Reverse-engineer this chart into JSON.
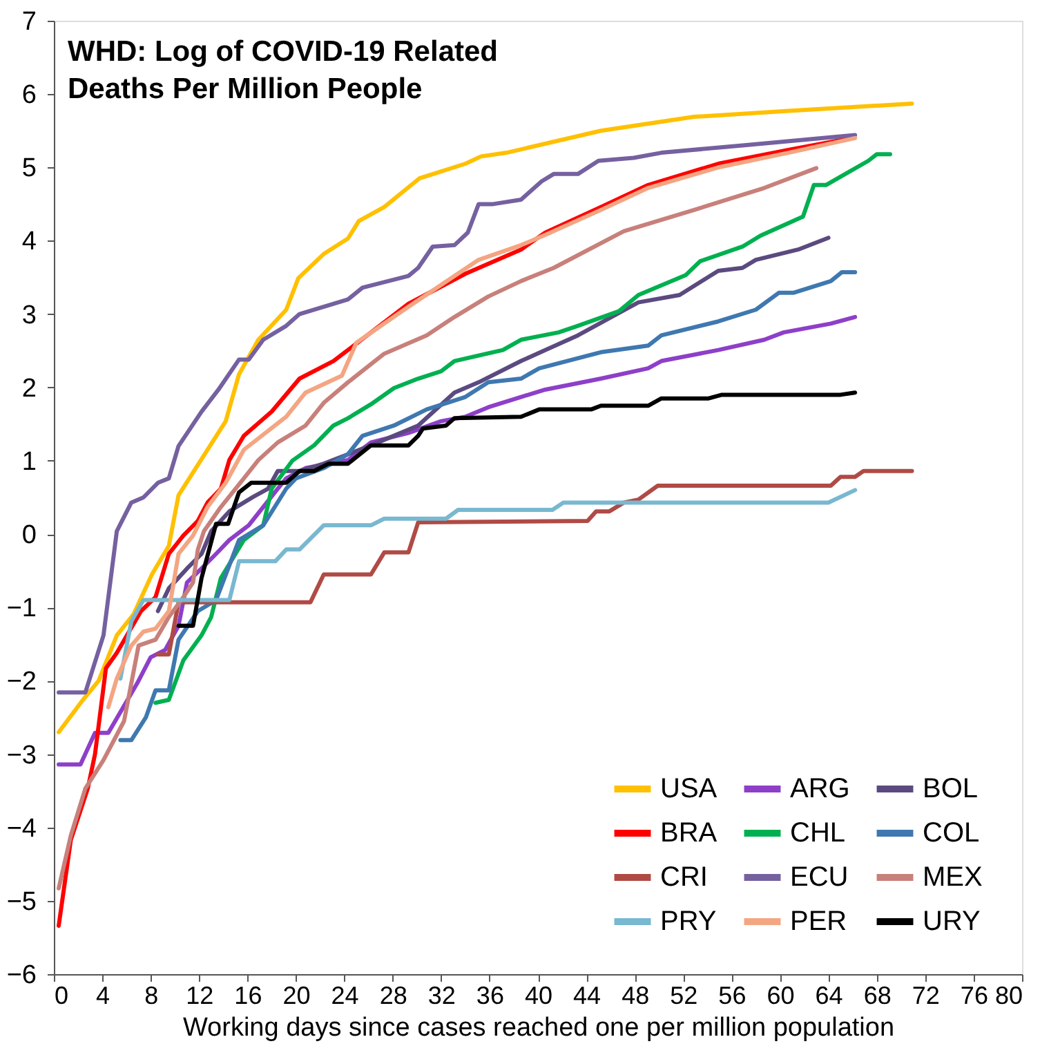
{
  "chart_data": {
    "type": "line",
    "title": "WHD: Log of COVID-19 Related\nDeaths Per Million People",
    "xlabel": "Working days since cases reached one per million population",
    "xlim": [
      0,
      80
    ],
    "xticks": [
      0,
      4,
      8,
      12,
      16,
      20,
      24,
      28,
      32,
      36,
      40,
      44,
      48,
      52,
      56,
      60,
      64,
      68,
      72,
      76,
      80
    ],
    "ylim": [
      -6,
      7
    ],
    "yticks": [
      -6,
      -5,
      -4,
      -3,
      -2,
      -1,
      0,
      1,
      2,
      3,
      4,
      5,
      6,
      7
    ],
    "grid": false,
    "legend": "bottom right",
    "line_style": "solid",
    "series": [
      {
        "name": "USA",
        "color": "#ffc000",
        "x": [
          0.4,
          2.4,
          3.7,
          5.2,
          6.6,
          8.1,
          9.5,
          10.3,
          14.2,
          15.3,
          16.9,
          19.2,
          20.2,
          22.3,
          24.3,
          25.2,
          27.3,
          30.2,
          34,
          35.3,
          37.4,
          45.2,
          52.9,
          60.7,
          70.9
        ],
        "values": [
          -2.7,
          -2.26,
          -2.0,
          -1.38,
          -1.09,
          -0.55,
          -0.16,
          0.53,
          1.54,
          2.18,
          2.65,
          3.06,
          3.49,
          3.82,
          4.03,
          4.27,
          4.46,
          4.85,
          5.05,
          5.15,
          5.2,
          5.5,
          5.69,
          5.77,
          5.87
        ]
      },
      {
        "name": "ARG",
        "color": "#8e3fc8",
        "x": [
          0.4,
          2.2,
          3.4,
          4.5,
          6.9,
          8,
          9.2,
          10.3,
          11,
          12.2,
          13.4,
          14.5,
          16.1,
          17.3,
          18.5,
          19.2,
          20.8,
          24.3,
          26.2,
          29.3,
          32,
          34,
          35.9,
          38.6,
          40.6,
          45.2,
          49.1,
          50.2,
          54.9,
          58.7,
          60.3,
          64.2,
          66.2
        ],
        "values": [
          -3.14,
          -3.14,
          -2.71,
          -2.71,
          -2.03,
          -1.68,
          -1.58,
          -1.25,
          -0.66,
          -0.47,
          -0.27,
          -0.08,
          0.12,
          0.37,
          0.62,
          0.76,
          0.9,
          1.01,
          1.25,
          1.38,
          1.54,
          1.6,
          1.73,
          1.87,
          1.97,
          2.12,
          2.26,
          2.36,
          2.51,
          2.65,
          2.75,
          2.87,
          2.96
        ]
      },
      {
        "name": "BOL",
        "color": "#5b4a80",
        "x": [
          8.6,
          9.5,
          11,
          12.2,
          13,
          14.5,
          16.5,
          17.7,
          18.5,
          20.3,
          22.3,
          26.2,
          30.1,
          33.1,
          35.1,
          38.6,
          39.4,
          43.3,
          48.3,
          51.7,
          54.9,
          56.9,
          58,
          61.5,
          64
        ],
        "values": [
          -1.05,
          -0.74,
          -0.47,
          -0.27,
          0.04,
          0.31,
          0.51,
          0.62,
          0.86,
          0.86,
          0.96,
          1.21,
          1.48,
          1.93,
          2.07,
          2.36,
          2.42,
          2.71,
          3.16,
          3.26,
          3.59,
          3.63,
          3.74,
          3.88,
          4.04
        ]
      },
      {
        "name": "BRA",
        "color": "#ff0000",
        "x": [
          0.4,
          1.4,
          2.8,
          3.4,
          4.3,
          5.2,
          7.2,
          8.4,
          9.5,
          10.7,
          11.9,
          12.7,
          13.8,
          14.5,
          15.7,
          18,
          20.3,
          23.1,
          24.3,
          29.3,
          34,
          38.6,
          40.6,
          45.2,
          49.1,
          54.9,
          60.7,
          65.9
        ],
        "values": [
          -5.34,
          -4.17,
          -3.47,
          -3.0,
          -1.83,
          -1.62,
          -1.05,
          -0.86,
          -0.27,
          -0.02,
          0.18,
          0.43,
          0.62,
          1.01,
          1.34,
          1.67,
          2.12,
          2.36,
          2.51,
          3.14,
          3.55,
          3.88,
          4.11,
          4.46,
          4.76,
          5.05,
          5.24,
          5.4
        ]
      },
      {
        "name": "CHL",
        "color": "#00b050",
        "x": [
          8.4,
          9.5,
          10.7,
          12.2,
          13,
          13.8,
          15.7,
          17.3,
          18,
          19.7,
          21.5,
          23.1,
          24.3,
          26.2,
          28.1,
          30.1,
          32,
          33.1,
          37.1,
          38.6,
          41.7,
          43.3,
          46.7,
          48.3,
          52.2,
          53.4,
          56.9,
          58.4,
          61.9,
          62.8,
          63.8,
          67.3,
          68,
          69.1
        ],
        "values": [
          -2.3,
          -2.26,
          -1.72,
          -1.38,
          -1.13,
          -0.6,
          -0.08,
          0.12,
          0.62,
          1.0,
          1.21,
          1.48,
          1.58,
          1.77,
          1.99,
          2.12,
          2.22,
          2.36,
          2.51,
          2.65,
          2.75,
          2.84,
          3.04,
          3.26,
          3.53,
          3.72,
          3.92,
          4.07,
          4.33,
          4.76,
          4.76,
          5.09,
          5.18,
          5.18
        ]
      },
      {
        "name": "COL",
        "color": "#3f78b0",
        "x": [
          5.5,
          6.4,
          7.6,
          8.4,
          9.5,
          10.3,
          11.9,
          13.4,
          15.3,
          17.3,
          19.2,
          20,
          22.3,
          24.3,
          25.5,
          28.1,
          30.8,
          34,
          35.9,
          38.6,
          40.1,
          45.2,
          49.1,
          50.2,
          54.9,
          58,
          59.9,
          61.1,
          64.2,
          65.1,
          66.2
        ],
        "values": [
          -2.81,
          -2.81,
          -2.5,
          -2.13,
          -2.13,
          -1.44,
          -1.05,
          -0.9,
          -0.08,
          0.12,
          0.62,
          0.76,
          0.9,
          1.09,
          1.34,
          1.48,
          1.7,
          1.87,
          2.07,
          2.12,
          2.26,
          2.48,
          2.57,
          2.71,
          2.9,
          3.06,
          3.29,
          3.29,
          3.45,
          3.57,
          3.57
        ]
      },
      {
        "name": "CRI",
        "color": "#b04a45",
        "x": [
          8.6,
          9.5,
          10.3,
          21.2,
          22.3,
          26.2,
          27.3,
          29.3,
          30.1,
          44.1,
          44.8,
          45.9,
          47.1,
          48.3,
          49.9,
          64.2,
          65,
          66.2,
          66.9,
          70.9
        ],
        "values": [
          -1.64,
          -1.64,
          -0.93,
          -0.93,
          -0.55,
          -0.55,
          -0.25,
          -0.25,
          0.16,
          0.18,
          0.31,
          0.31,
          0.43,
          0.47,
          0.66,
          0.66,
          0.78,
          0.78,
          0.86,
          0.86
        ]
      },
      {
        "name": "ECU",
        "color": "#7560a0",
        "x": [
          0.4,
          2.6,
          4.1,
          5.2,
          6.4,
          7.4,
          8.6,
          9.5,
          10.3,
          12.2,
          13.6,
          15.3,
          16.1,
          17.3,
          19.2,
          20.3,
          24.3,
          25.5,
          29.3,
          30.1,
          31.3,
          33.1,
          34.2,
          35.1,
          36.3,
          38.6,
          40.3,
          41.3,
          43.3,
          45,
          47.9,
          50.2,
          56.9,
          66.2
        ],
        "values": [
          -2.16,
          -2.16,
          -1.38,
          0.04,
          0.43,
          0.5,
          0.7,
          0.76,
          1.2,
          1.67,
          1.97,
          2.38,
          2.38,
          2.65,
          2.84,
          3.0,
          3.2,
          3.36,
          3.52,
          3.63,
          3.92,
          3.94,
          4.11,
          4.5,
          4.5,
          4.56,
          4.81,
          4.91,
          4.91,
          5.09,
          5.13,
          5.2,
          5.3,
          5.44
        ]
      },
      {
        "name": "MEX",
        "color": "#c8807a",
        "x": [
          0.4,
          1.4,
          2.6,
          4.1,
          5.8,
          7,
          8.4,
          9.5,
          10.7,
          11.5,
          11.9,
          12.4,
          13.8,
          15.7,
          16.9,
          18.5,
          20.8,
          22.3,
          24.3,
          27.3,
          30.8,
          33.1,
          35.9,
          38.6,
          41.3,
          47.1,
          52.9,
          58.7,
          63
        ],
        "values": [
          -4.83,
          -4.11,
          -3.47,
          -3.08,
          -2.55,
          -1.52,
          -1.44,
          -1.13,
          -0.86,
          -0.66,
          -0.21,
          0.04,
          0.37,
          0.76,
          1.01,
          1.25,
          1.48,
          1.79,
          2.07,
          2.46,
          2.71,
          2.96,
          3.24,
          3.45,
          3.63,
          4.13,
          4.42,
          4.72,
          4.99
        ]
      },
      {
        "name": "PRY",
        "color": "#78b8d0",
        "x": [
          5.5,
          6.4,
          7.4,
          14.5,
          15.3,
          18.3,
          19.2,
          20.3,
          22.3,
          26.2,
          27.3,
          32.4,
          33.4,
          41.2,
          42.1,
          64,
          66.2
        ],
        "values": [
          -1.97,
          -1.19,
          -0.9,
          -0.9,
          -0.37,
          -0.37,
          -0.21,
          -0.21,
          0.12,
          0.12,
          0.21,
          0.21,
          0.33,
          0.33,
          0.43,
          0.43,
          0.6
        ]
      },
      {
        "name": "PER",
        "color": "#f4a582",
        "x": [
          4.5,
          5.2,
          6.4,
          7.4,
          8.4,
          9.5,
          10.3,
          11.5,
          12.7,
          14.2,
          15.7,
          19.2,
          20.8,
          23.8,
          25,
          29.3,
          35.1,
          38.6,
          40.6,
          45.2,
          49.1,
          54.9,
          60.7,
          66.2
        ],
        "values": [
          -2.36,
          -1.97,
          -1.52,
          -1.33,
          -1.29,
          -1.05,
          -0.27,
          -0.02,
          0.37,
          0.7,
          1.15,
          1.6,
          1.93,
          2.16,
          2.61,
          3.1,
          3.74,
          3.94,
          4.08,
          4.42,
          4.72,
          5.0,
          5.2,
          5.4
        ]
      },
      {
        "name": "URY",
        "color": "#000000",
        "x": [
          10.3,
          11.5,
          12.2,
          13.4,
          14.4,
          15.3,
          16.3,
          19.2,
          20.3,
          21.5,
          22.7,
          24.3,
          26.2,
          29.3,
          30.1,
          30.5,
          32.4,
          33.1,
          38.6,
          40.1,
          44.4,
          45.2,
          49.1,
          50.2,
          54.1,
          55.2,
          65,
          66.2
        ],
        "values": [
          -1.25,
          -1.25,
          -0.6,
          0.14,
          0.14,
          0.57,
          0.7,
          0.7,
          0.86,
          0.86,
          0.96,
          0.96,
          1.21,
          1.21,
          1.34,
          1.44,
          1.48,
          1.58,
          1.6,
          1.7,
          1.7,
          1.75,
          1.75,
          1.85,
          1.85,
          1.9,
          1.9,
          1.93
        ]
      }
    ]
  }
}
